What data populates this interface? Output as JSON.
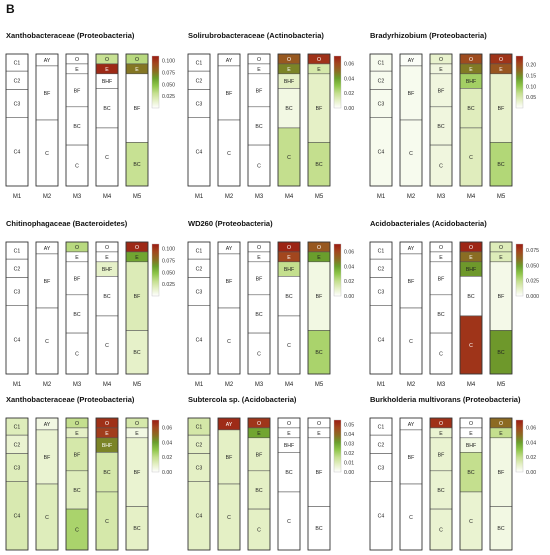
{
  "panel_label": "B",
  "colors": {
    "scale": [
      "#ffffff",
      "#e5f0c6",
      "#c4df8e",
      "#8fc64a",
      "#6a9e2c",
      "#8c6a22",
      "#a2461e",
      "#9b1b12"
    ],
    "border": "#555555"
  },
  "chart_data": [
    {
      "type": "heatmap",
      "title": "Xanthobacteraceae (Proteobacteria)",
      "xticks": [
        "M1",
        "M2",
        "M3",
        "M4",
        "M5"
      ],
      "legend_ticks": [
        "0.100",
        "0.075",
        "0.050",
        "0.025"
      ],
      "legend_range": [
        0,
        0.11
      ],
      "columns": [
        {
          "name": "M1",
          "horizons": [
            [
              "C1",
              0.0
            ],
            [
              "C2",
              0.0
            ],
            [
              "C3",
              0.0
            ],
            [
              "C4",
              0.0
            ]
          ]
        },
        {
          "name": "M2",
          "horizons": [
            [
              "AY",
              0.0
            ],
            [
              "BF",
              0.0
            ],
            [
              "C",
              0.0
            ]
          ]
        },
        {
          "name": "M3",
          "horizons": [
            [
              "O",
              0.0
            ],
            [
              "E",
              0.0
            ],
            [
              "BF",
              0.0
            ],
            [
              "BC",
              0.0
            ],
            [
              "C",
              0.0
            ]
          ]
        },
        {
          "name": "M4",
          "horizons": [
            [
              "O",
              0.03
            ],
            [
              "E",
              0.105
            ],
            [
              "BHF",
              0.0
            ],
            [
              "BC",
              0.0
            ],
            [
              "C",
              0.0
            ]
          ]
        },
        {
          "name": "M5",
          "horizons": [
            [
              "O",
              0.035
            ],
            [
              "E",
              0.075
            ],
            [
              "BF",
              0.0
            ],
            [
              "BC",
              0.03
            ]
          ]
        }
      ]
    },
    {
      "type": "heatmap",
      "title": "Solirubrobacteraceae (Actinobacteria)",
      "xticks": [
        "M1",
        "M2",
        "M3",
        "M4",
        "M5"
      ],
      "legend_ticks": [
        "0.06",
        "0.04",
        "0.02",
        "0.00"
      ],
      "legend_range": [
        0,
        0.07
      ],
      "columns": [
        {
          "name": "M1",
          "horizons": [
            [
              "C1",
              0.0
            ],
            [
              "C2",
              0.0
            ],
            [
              "C3",
              0.0
            ],
            [
              "C4",
              0.0
            ]
          ]
        },
        {
          "name": "M2",
          "horizons": [
            [
              "AY",
              0.0
            ],
            [
              "BF",
              0.0
            ],
            [
              "C",
              0.0
            ]
          ]
        },
        {
          "name": "M3",
          "horizons": [
            [
              "O",
              0.0
            ],
            [
              "E",
              0.0
            ],
            [
              "BF",
              0.0
            ],
            [
              "BC",
              0.0
            ],
            [
              "C",
              0.0
            ]
          ]
        },
        {
          "name": "M4",
          "horizons": [
            [
              "O",
              0.055
            ],
            [
              "E",
              0.045
            ],
            [
              "BHF",
              0.01
            ],
            [
              "BC",
              0.005
            ],
            [
              "C",
              0.02
            ]
          ]
        },
        {
          "name": "M5",
          "horizons": [
            [
              "O",
              0.065
            ],
            [
              "E",
              0.015
            ],
            [
              "BF",
              0.01
            ],
            [
              "BC",
              0.02
            ]
          ]
        }
      ]
    },
    {
      "type": "heatmap",
      "title": "Bradyrhizobium (Proteobacteria)",
      "xticks": [
        "M1",
        "M2",
        "M3",
        "M4",
        "M5"
      ],
      "legend_ticks": [
        "0.20",
        "0.15",
        "0.10",
        "0.05"
      ],
      "legend_range": [
        0,
        0.24
      ],
      "columns": [
        {
          "name": "M1",
          "horizons": [
            [
              "C1",
              0.01
            ],
            [
              "C2",
              0.01
            ],
            [
              "C3",
              0.01
            ],
            [
              "C4",
              0.01
            ]
          ]
        },
        {
          "name": "M2",
          "horizons": [
            [
              "AY",
              0.005
            ],
            [
              "BF",
              0.01
            ],
            [
              "C",
              0.01
            ]
          ]
        },
        {
          "name": "M3",
          "horizons": [
            [
              "O",
              0.03
            ],
            [
              "E",
              0.02
            ],
            [
              "BF",
              0.02
            ],
            [
              "BC",
              0.02
            ],
            [
              "C",
              0.02
            ]
          ]
        },
        {
          "name": "M4",
          "horizons": [
            [
              "O",
              0.2
            ],
            [
              "E",
              0.16
            ],
            [
              "BHF",
              0.09
            ],
            [
              "BC",
              0.04
            ],
            [
              "C",
              0.04
            ]
          ]
        },
        {
          "name": "M5",
          "horizons": [
            [
              "O",
              0.22
            ],
            [
              "E",
              0.19
            ],
            [
              "BF",
              0.03
            ],
            [
              "BC",
              0.08
            ]
          ]
        }
      ]
    },
    {
      "type": "heatmap",
      "title": "Chitinophagaceae (Bacteroidetes)",
      "xticks": [
        "M1",
        "M2",
        "M3",
        "M4",
        "M5"
      ],
      "legend_ticks": [
        "0.100",
        "0.075",
        "0.050",
        "0.025"
      ],
      "legend_range": [
        0,
        0.11
      ],
      "columns": [
        {
          "name": "M1",
          "horizons": [
            [
              "C1",
              0.0
            ],
            [
              "C2",
              0.0
            ],
            [
              "C3",
              0.0
            ],
            [
              "C4",
              0.0
            ]
          ]
        },
        {
          "name": "M2",
          "horizons": [
            [
              "AY",
              0.0
            ],
            [
              "BF",
              0.0
            ],
            [
              "C",
              0.0
            ]
          ]
        },
        {
          "name": "M3",
          "horizons": [
            [
              "O",
              0.035
            ],
            [
              "E",
              0.0
            ],
            [
              "BF",
              0.0
            ],
            [
              "BC",
              0.0
            ],
            [
              "C",
              0.0
            ]
          ]
        },
        {
          "name": "M4",
          "horizons": [
            [
              "O",
              0.0
            ],
            [
              "E",
              0.0
            ],
            [
              "BHF",
              0.015
            ],
            [
              "BC",
              0.0
            ],
            [
              "C",
              0.0
            ]
          ]
        },
        {
          "name": "M5",
          "horizons": [
            [
              "O",
              0.105
            ],
            [
              "E",
              0.06
            ],
            [
              "BF",
              0.02
            ],
            [
              "BC",
              0.015
            ]
          ]
        }
      ]
    },
    {
      "type": "heatmap",
      "title": "WD260 (Proteobacteria)",
      "xticks": [
        "M1",
        "M2",
        "M3",
        "M4",
        "M5"
      ],
      "legend_ticks": [
        "0.06",
        "0.04",
        "0.02",
        "0.00"
      ],
      "legend_range": [
        0,
        0.07
      ],
      "columns": [
        {
          "name": "M1",
          "horizons": [
            [
              "C1",
              0.0
            ],
            [
              "C2",
              0.0
            ],
            [
              "C3",
              0.0
            ],
            [
              "C4",
              0.0
            ]
          ]
        },
        {
          "name": "M2",
          "horizons": [
            [
              "AY",
              0.0
            ],
            [
              "BF",
              0.0
            ],
            [
              "C",
              0.0
            ]
          ]
        },
        {
          "name": "M3",
          "horizons": [
            [
              "O",
              0.0
            ],
            [
              "E",
              0.0
            ],
            [
              "BF",
              0.0
            ],
            [
              "BC",
              0.0
            ],
            [
              "C",
              0.0
            ]
          ]
        },
        {
          "name": "M4",
          "horizons": [
            [
              "O",
              0.068
            ],
            [
              "E",
              0.06
            ],
            [
              "BHF",
              0.02
            ],
            [
              "BC",
              0.0
            ],
            [
              "C",
              0.0
            ]
          ]
        },
        {
          "name": "M5",
          "horizons": [
            [
              "O",
              0.055
            ],
            [
              "E",
              0.04
            ],
            [
              "BF",
              0.005
            ],
            [
              "BC",
              0.025
            ]
          ]
        }
      ]
    },
    {
      "type": "heatmap",
      "title": "Acidobacteriales (Acidobacteria)",
      "xticks": [
        "M1",
        "M2",
        "M3",
        "M4",
        "M5"
      ],
      "legend_ticks": [
        "0.075",
        "0.050",
        "0.025",
        "0.000"
      ],
      "legend_range": [
        0,
        0.085
      ],
      "columns": [
        {
          "name": "M1",
          "horizons": [
            [
              "C1",
              0.0
            ],
            [
              "C2",
              0.0
            ],
            [
              "C3",
              0.0
            ],
            [
              "C4",
              0.0
            ]
          ]
        },
        {
          "name": "M2",
          "horizons": [
            [
              "AY",
              0.0
            ],
            [
              "BF",
              0.0
            ],
            [
              "C",
              0.0
            ]
          ]
        },
        {
          "name": "M3",
          "horizons": [
            [
              "O",
              0.0
            ],
            [
              "E",
              0.0
            ],
            [
              "BF",
              0.0
            ],
            [
              "BC",
              0.0
            ],
            [
              "C",
              0.0
            ]
          ]
        },
        {
          "name": "M4",
          "horizons": [
            [
              "O",
              0.082
            ],
            [
              "E",
              0.06
            ],
            [
              "BHF",
              0.05
            ],
            [
              "BC",
              0.0
            ],
            [
              "C",
              0.078
            ]
          ]
        },
        {
          "name": "M5",
          "horizons": [
            [
              "O",
              0.015
            ],
            [
              "E",
              0.015
            ],
            [
              "BF",
              0.005
            ],
            [
              "BC",
              0.05
            ]
          ]
        }
      ]
    },
    {
      "type": "heatmap",
      "title": "Xanthobacteraceae (Proteobacteria)",
      "xticks": [
        "M1",
        "M2",
        "M3",
        "M4",
        "M5"
      ],
      "legend_ticks": [
        "0.06",
        "0.04",
        "0.02",
        "0.00"
      ],
      "legend_range": [
        0,
        0.07
      ],
      "columns": [
        {
          "name": "M1",
          "horizons": [
            [
              "C1",
              0.012
            ],
            [
              "C2",
              0.008
            ],
            [
              "C3",
              0.012
            ],
            [
              "C4",
              0.014
            ]
          ]
        },
        {
          "name": "M2",
          "horizons": [
            [
              "AY",
              0.005
            ],
            [
              "BF",
              0.008
            ],
            [
              "C",
              0.012
            ]
          ]
        },
        {
          "name": "M3",
          "horizons": [
            [
              "O",
              0.02
            ],
            [
              "E",
              0.01
            ],
            [
              "BF",
              0.015
            ],
            [
              "BC",
              0.012
            ],
            [
              "C",
              0.025
            ]
          ]
        },
        {
          "name": "M4",
          "horizons": [
            [
              "O",
              0.065
            ],
            [
              "E",
              0.062
            ],
            [
              "BHF",
              0.045
            ],
            [
              "BC",
              0.015
            ],
            [
              "C",
              0.015
            ]
          ]
        },
        {
          "name": "M5",
          "horizons": [
            [
              "O",
              0.015
            ],
            [
              "E",
              0.005
            ],
            [
              "BF",
              0.008
            ],
            [
              "BC",
              0.01
            ]
          ]
        }
      ]
    },
    {
      "type": "heatmap",
      "title": "Subtercola sp. (Acidobacteria)",
      "xticks": [
        "M1",
        "M2",
        "M3",
        "M4",
        "M5"
      ],
      "legend_ticks": [
        "0.05",
        "0.04",
        "0.03",
        "0.02",
        "0.01",
        "0.00"
      ],
      "legend_range": [
        0,
        0.055
      ],
      "columns": [
        {
          "name": "M1",
          "horizons": [
            [
              "C1",
              0.012
            ],
            [
              "C2",
              0.008
            ],
            [
              "C3",
              0.008
            ],
            [
              "C4",
              0.008
            ]
          ]
        },
        {
          "name": "M2",
          "horizons": [
            [
              "AY",
              0.052
            ],
            [
              "BF",
              0.008
            ],
            [
              "C",
              0.008
            ]
          ]
        },
        {
          "name": "M3",
          "horizons": [
            [
              "O",
              0.05
            ],
            [
              "E",
              0.03
            ],
            [
              "BF",
              0.008
            ],
            [
              "BC",
              0.008
            ],
            [
              "C",
              0.008
            ]
          ]
        },
        {
          "name": "M4",
          "horizons": [
            [
              "O",
              0.0
            ],
            [
              "E",
              0.0
            ],
            [
              "BHF",
              0.0
            ],
            [
              "BC",
              0.0
            ],
            [
              "C",
              0.0
            ]
          ]
        },
        {
          "name": "M5",
          "horizons": [
            [
              "O",
              0.0
            ],
            [
              "E",
              0.0
            ],
            [
              "BF",
              0.0
            ],
            [
              "BC",
              0.0
            ]
          ]
        }
      ]
    },
    {
      "type": "heatmap",
      "title": "Burkholderia multivorans (Proteobacteria)",
      "xticks": [
        "M1",
        "M2",
        "M3",
        "M4",
        "M5"
      ],
      "legend_ticks": [
        "0.06",
        "0.04",
        "0.02",
        "0.00"
      ],
      "legend_range": [
        0,
        0.07
      ],
      "columns": [
        {
          "name": "M1",
          "horizons": [
            [
              "C1",
              0.0
            ],
            [
              "C2",
              0.0
            ],
            [
              "C3",
              0.0
            ],
            [
              "C4",
              0.0
            ]
          ]
        },
        {
          "name": "M2",
          "horizons": [
            [
              "AY",
              0.0
            ],
            [
              "BF",
              0.0
            ],
            [
              "C",
              0.0
            ]
          ]
        },
        {
          "name": "M3",
          "horizons": [
            [
              "O",
              0.065
            ],
            [
              "E",
              0.008
            ],
            [
              "BF",
              0.008
            ],
            [
              "BC",
              0.008
            ],
            [
              "C",
              0.008
            ]
          ]
        },
        {
          "name": "M4",
          "horizons": [
            [
              "O",
              0.0
            ],
            [
              "E",
              0.0
            ],
            [
              "BHF",
              0.005
            ],
            [
              "BC",
              0.02
            ],
            [
              "C",
              0.008
            ]
          ]
        },
        {
          "name": "M5",
          "horizons": [
            [
              "O",
              0.05
            ],
            [
              "E",
              0.02
            ],
            [
              "BF",
              0.005
            ],
            [
              "BC",
              0.005
            ]
          ]
        }
      ]
    }
  ]
}
